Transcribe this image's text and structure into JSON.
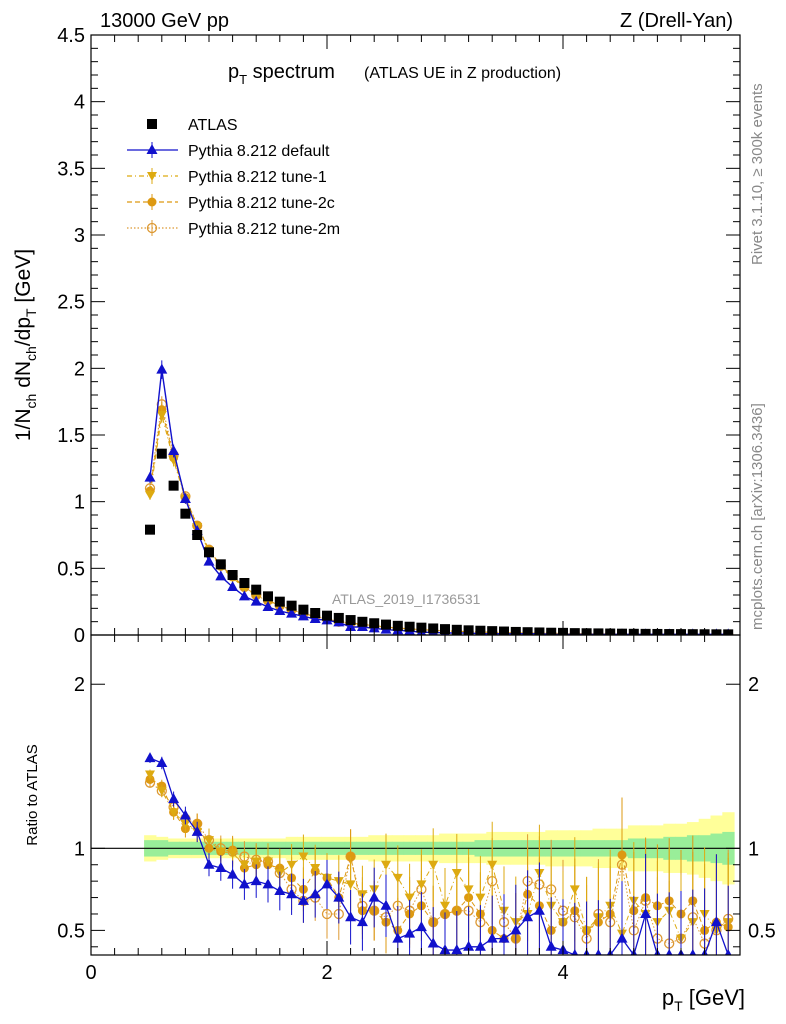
{
  "header": {
    "left": "13000 GeV pp",
    "right": "Z (Drell-Yan)"
  },
  "side_labels": {
    "rivet": "Rivet 3.1.10, ≥ 300k events",
    "mcplots": "mcplots.cern.ch [arXiv:1306.3436]"
  },
  "colors": {
    "data": "#000000",
    "default": "#1111cc",
    "tune1": "#ddaa11",
    "tune2c": "#dd9911",
    "tune2m": "#dd9933",
    "band_inner": "#99ee99",
    "band_outer": "#ffff99"
  },
  "chart_data": [
    {
      "type": "scatter",
      "panel": "main",
      "title_main": "p",
      "title_sub": "T",
      "title_rest": " spectrum",
      "subtitle": "(ATLAS UE in Z production)",
      "watermark": "ATLAS_2019_I1736531",
      "ylabel": "1/N_ch dN_ch/dp_T [GeV]",
      "ylim": [
        0,
        4.5
      ],
      "xlim": [
        0,
        5.5
      ],
      "yticks": [
        "0",
        "0.5",
        "1",
        "1.5",
        "2",
        "2.5",
        "3",
        "3.5",
        "4",
        "4.5"
      ],
      "x": [
        0.5,
        0.6,
        0.7,
        0.8,
        0.9,
        1.0,
        1.1,
        1.2,
        1.3,
        1.4,
        1.5,
        1.6,
        1.7,
        1.8,
        1.9,
        2.0,
        2.1,
        2.2,
        2.3,
        2.4,
        2.5,
        2.6,
        2.7,
        2.8,
        2.9,
        3.0,
        3.1,
        3.2,
        3.3,
        3.4,
        3.5,
        3.6,
        3.7,
        3.8,
        3.9,
        4.0,
        4.1,
        4.2,
        4.3,
        4.4,
        4.5,
        4.6,
        4.7,
        4.8,
        4.9,
        5.0,
        5.1,
        5.2,
        5.3,
        5.4
      ],
      "legend": [
        {
          "label": "ATLAS",
          "key": "data"
        },
        {
          "label": "Pythia 8.212 default",
          "key": "default"
        },
        {
          "label": "Pythia 8.212 tune-1",
          "key": "tune1"
        },
        {
          "label": "Pythia 8.212 tune-2c",
          "key": "tune2c"
        },
        {
          "label": "Pythia 8.212 tune-2m",
          "key": "tune2m"
        }
      ],
      "series": [
        {
          "name": "ATLAS",
          "key": "data",
          "values": [
            0.79,
            1.36,
            1.12,
            0.91,
            0.75,
            0.62,
            0.53,
            0.45,
            0.39,
            0.34,
            0.29,
            0.25,
            0.22,
            0.19,
            0.165,
            0.145,
            0.128,
            0.112,
            0.099,
            0.088,
            0.078,
            0.069,
            0.062,
            0.055,
            0.049,
            0.044,
            0.039,
            0.035,
            0.032,
            0.029,
            0.026,
            0.023,
            0.021,
            0.019,
            0.017,
            0.016,
            0.014,
            0.013,
            0.012,
            0.011,
            0.01,
            0.009,
            0.0085,
            0.0078,
            0.0072,
            0.0066,
            0.0061,
            0.0056,
            0.0052,
            0.0048
          ]
        },
        {
          "name": "Pythia 8.212 default",
          "key": "default",
          "values": [
            1.18,
            1.99,
            1.38,
            1.02,
            0.78,
            0.55,
            0.44,
            0.36,
            0.29,
            0.25,
            0.21,
            0.18,
            0.16,
            0.14,
            0.12,
            0.11,
            0.095,
            0.06,
            0.06,
            0.05,
            0.04,
            0.035,
            0.03,
            0.02,
            0.02,
            0.015,
            0.015,
            0.015,
            0.01,
            0.01,
            0.01,
            0.01,
            0.01,
            0.01,
            0.005,
            0.005,
            0.005,
            0.005,
            0.005,
            0.005,
            0.005,
            0.005,
            0.005,
            0.005,
            0.005,
            0.005,
            0.005,
            0.005,
            0.005,
            0.005
          ]
        },
        {
          "name": "Pythia 8.212 tune-1",
          "key": "tune1",
          "values": [
            1.05,
            1.65,
            1.31,
            1.02,
            0.81,
            0.63,
            0.51,
            0.43,
            0.35,
            0.3,
            0.25,
            0.22,
            0.19,
            0.16,
            0.14,
            0.12,
            0.1,
            0.085,
            0.075,
            0.065,
            0.055,
            0.05,
            0.045,
            0.04,
            0.035,
            0.03,
            0.028,
            0.025,
            0.022,
            0.02,
            0.018,
            0.016,
            0.015,
            0.013,
            0.012,
            0.011,
            0.01,
            0.009,
            0.008,
            0.008,
            0.007,
            0.006,
            0.006,
            0.005,
            0.005,
            0.005,
            0.004,
            0.004,
            0.004,
            0.004
          ]
        },
        {
          "name": "Pythia 8.212 tune-2c",
          "key": "tune2c",
          "values": [
            1.08,
            1.69,
            1.33,
            1.03,
            0.82,
            0.64,
            0.52,
            0.44,
            0.36,
            0.3,
            0.26,
            0.22,
            0.19,
            0.16,
            0.14,
            0.12,
            0.1,
            0.09,
            0.08,
            0.07,
            0.06,
            0.052,
            0.046,
            0.04,
            0.035,
            0.031,
            0.028,
            0.025,
            0.022,
            0.02,
            0.018,
            0.016,
            0.015,
            0.013,
            0.012,
            0.011,
            0.01,
            0.009,
            0.008,
            0.008,
            0.007,
            0.006,
            0.006,
            0.005,
            0.005,
            0.005,
            0.004,
            0.004,
            0.004,
            0.004
          ]
        },
        {
          "name": "Pythia 8.212 tune-2m",
          "key": "tune2m",
          "values": [
            1.1,
            1.73,
            1.35,
            1.04,
            0.82,
            0.64,
            0.52,
            0.44,
            0.36,
            0.3,
            0.26,
            0.22,
            0.19,
            0.16,
            0.14,
            0.12,
            0.1,
            0.09,
            0.08,
            0.07,
            0.06,
            0.052,
            0.046,
            0.04,
            0.035,
            0.031,
            0.028,
            0.025,
            0.022,
            0.02,
            0.018,
            0.016,
            0.015,
            0.013,
            0.012,
            0.011,
            0.01,
            0.009,
            0.008,
            0.008,
            0.007,
            0.006,
            0.006,
            0.005,
            0.005,
            0.005,
            0.004,
            0.004,
            0.004,
            0.004
          ]
        }
      ]
    },
    {
      "type": "scatter",
      "panel": "ratio",
      "ylabel": "Ratio to ATLAS",
      "xlabel": "p_T [GeV]",
      "ylim": [
        0.35,
        2.3
      ],
      "xlim": [
        0,
        5.5
      ],
      "yticks": [
        "0.5",
        "1",
        "2"
      ],
      "xticks": [
        "0",
        "2",
        "4"
      ],
      "band_inner_halfwidth": [
        0.05,
        0.05,
        0.04,
        0.04,
        0.04,
        0.04,
        0.04,
        0.04,
        0.04,
        0.04,
        0.04,
        0.04,
        0.04,
        0.04,
        0.04,
        0.04,
        0.04,
        0.04,
        0.04,
        0.04,
        0.04,
        0.04,
        0.04,
        0.04,
        0.04,
        0.04,
        0.04,
        0.04,
        0.05,
        0.05,
        0.05,
        0.05,
        0.05,
        0.05,
        0.05,
        0.05,
        0.05,
        0.05,
        0.05,
        0.05,
        0.05,
        0.06,
        0.06,
        0.06,
        0.07,
        0.07,
        0.08,
        0.08,
        0.09,
        0.1
      ],
      "band_outer_halfwidth": [
        0.08,
        0.07,
        0.06,
        0.06,
        0.06,
        0.06,
        0.06,
        0.06,
        0.06,
        0.06,
        0.06,
        0.06,
        0.07,
        0.07,
        0.07,
        0.07,
        0.07,
        0.07,
        0.07,
        0.08,
        0.08,
        0.08,
        0.08,
        0.08,
        0.08,
        0.09,
        0.09,
        0.09,
        0.09,
        0.1,
        0.1,
        0.1,
        0.1,
        0.1,
        0.11,
        0.11,
        0.11,
        0.11,
        0.12,
        0.12,
        0.12,
        0.14,
        0.14,
        0.14,
        0.15,
        0.15,
        0.16,
        0.18,
        0.2,
        0.22
      ],
      "series": [
        {
          "name": "Pythia 8.212 default",
          "key": "default",
          "values": [
            1.55,
            1.52,
            1.3,
            1.2,
            1.1,
            0.9,
            0.88,
            0.84,
            0.78,
            0.8,
            0.78,
            0.74,
            0.72,
            0.68,
            0.72,
            0.78,
            0.7,
            0.58,
            0.55,
            0.7,
            0.65,
            0.45,
            0.48,
            0.52,
            0.42,
            0.38,
            0.38,
            0.4,
            0.4,
            0.45,
            0.45,
            0.5,
            0.58,
            0.62,
            0.4,
            0.38,
            0.35,
            0.35,
            0.35,
            0.35,
            0.45,
            0.35,
            0.6,
            0.35,
            0.35,
            0.35,
            0.35,
            0.35,
            0.55,
            0.35
          ]
        },
        {
          "name": "Pythia 8.212 tune-1",
          "key": "tune1",
          "values": [
            1.45,
            1.35,
            1.22,
            1.15,
            1.1,
            1.05,
            0.98,
            0.97,
            0.9,
            0.92,
            0.92,
            0.85,
            0.9,
            0.95,
            0.88,
            0.82,
            0.8,
            0.78,
            0.72,
            0.75,
            0.9,
            0.82,
            0.7,
            0.78,
            0.9,
            0.65,
            0.85,
            0.75,
            0.7,
            0.9,
            0.62,
            0.55,
            0.6,
            0.85,
            0.65,
            0.55,
            0.75,
            0.5,
            0.58,
            0.65,
            0.48,
            0.68,
            0.6,
            0.55,
            0.62,
            0.45,
            0.55,
            0.6,
            0.5,
            0.55
          ]
        },
        {
          "name": "Pythia 8.212 tune-2c",
          "key": "tune2c",
          "values": [
            1.42,
            1.38,
            1.22,
            1.12,
            1.15,
            1.0,
            0.98,
            0.99,
            0.88,
            0.9,
            0.9,
            0.88,
            0.82,
            0.75,
            0.86,
            0.82,
            0.7,
            0.95,
            0.62,
            0.62,
            0.55,
            0.5,
            0.6,
            0.65,
            0.55,
            0.6,
            0.62,
            0.7,
            0.6,
            0.5,
            0.45,
            0.45,
            0.72,
            0.65,
            0.5,
            0.55,
            0.62,
            0.5,
            0.55,
            0.6,
            0.96,
            0.62,
            0.7,
            0.65,
            0.68,
            0.6,
            0.68,
            0.5,
            0.55,
            0.52
          ]
        },
        {
          "name": "Pythia 8.212 tune-2m",
          "key": "tune2m",
          "values": [
            1.4,
            1.35,
            1.25,
            1.18,
            1.15,
            1.05,
            1.0,
            0.98,
            0.95,
            0.93,
            0.92,
            0.85,
            0.75,
            0.68,
            0.7,
            0.6,
            0.6,
            0.95,
            0.65,
            0.62,
            0.58,
            0.65,
            0.62,
            0.75,
            0.55,
            0.6,
            0.62,
            0.62,
            0.55,
            0.8,
            0.55,
            0.45,
            0.8,
            0.78,
            0.75,
            0.62,
            0.58,
            0.45,
            0.6,
            0.55,
            0.9,
            0.5,
            0.68,
            0.45,
            0.42,
            0.45,
            0.58,
            0.42,
            0.5,
            0.57
          ]
        }
      ]
    }
  ]
}
